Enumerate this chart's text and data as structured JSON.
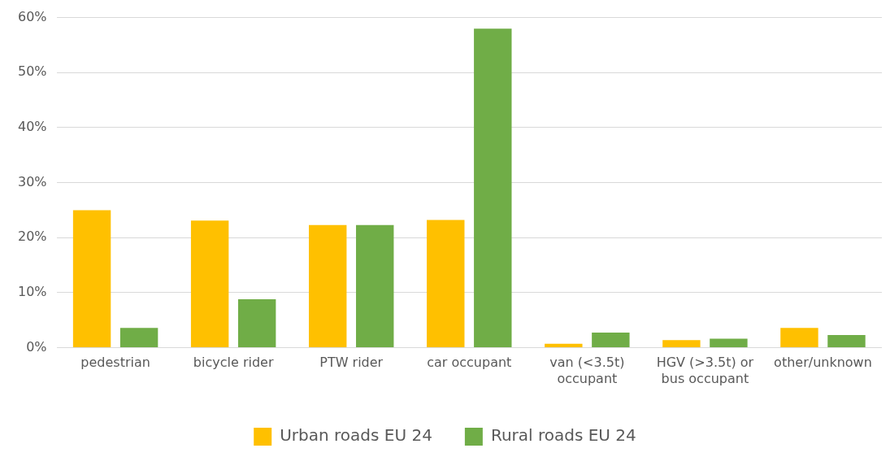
{
  "chart_data": {
    "type": "bar",
    "categories": [
      "pedestrian",
      "bicycle rider",
      "PTW rider",
      "car occupant",
      "van (<3.5t) occupant",
      "HGV (>3.5t) or bus occupant",
      "other/unknown"
    ],
    "series": [
      {
        "name": "Urban roads EU 24",
        "color": "#ffc000",
        "values": [
          25.0,
          23.1,
          22.3,
          23.2,
          0.7,
          1.4,
          3.6
        ]
      },
      {
        "name": "Rural roads EU 24",
        "color": "#70ad47",
        "values": [
          3.6,
          8.8,
          22.3,
          58.0,
          2.75,
          1.65,
          2.3
        ]
      }
    ],
    "ylim": [
      0,
      60
    ],
    "yticks": [
      {
        "value": 0,
        "label": "0%"
      },
      {
        "value": 10,
        "label": "10%"
      },
      {
        "value": 20,
        "label": "20%"
      },
      {
        "value": 30,
        "label": "30%"
      },
      {
        "value": 40,
        "label": "40%"
      },
      {
        "value": 50,
        "label": "50%"
      },
      {
        "value": 60,
        "label": "60%"
      }
    ],
    "grid": "y",
    "legend": "bottom"
  }
}
